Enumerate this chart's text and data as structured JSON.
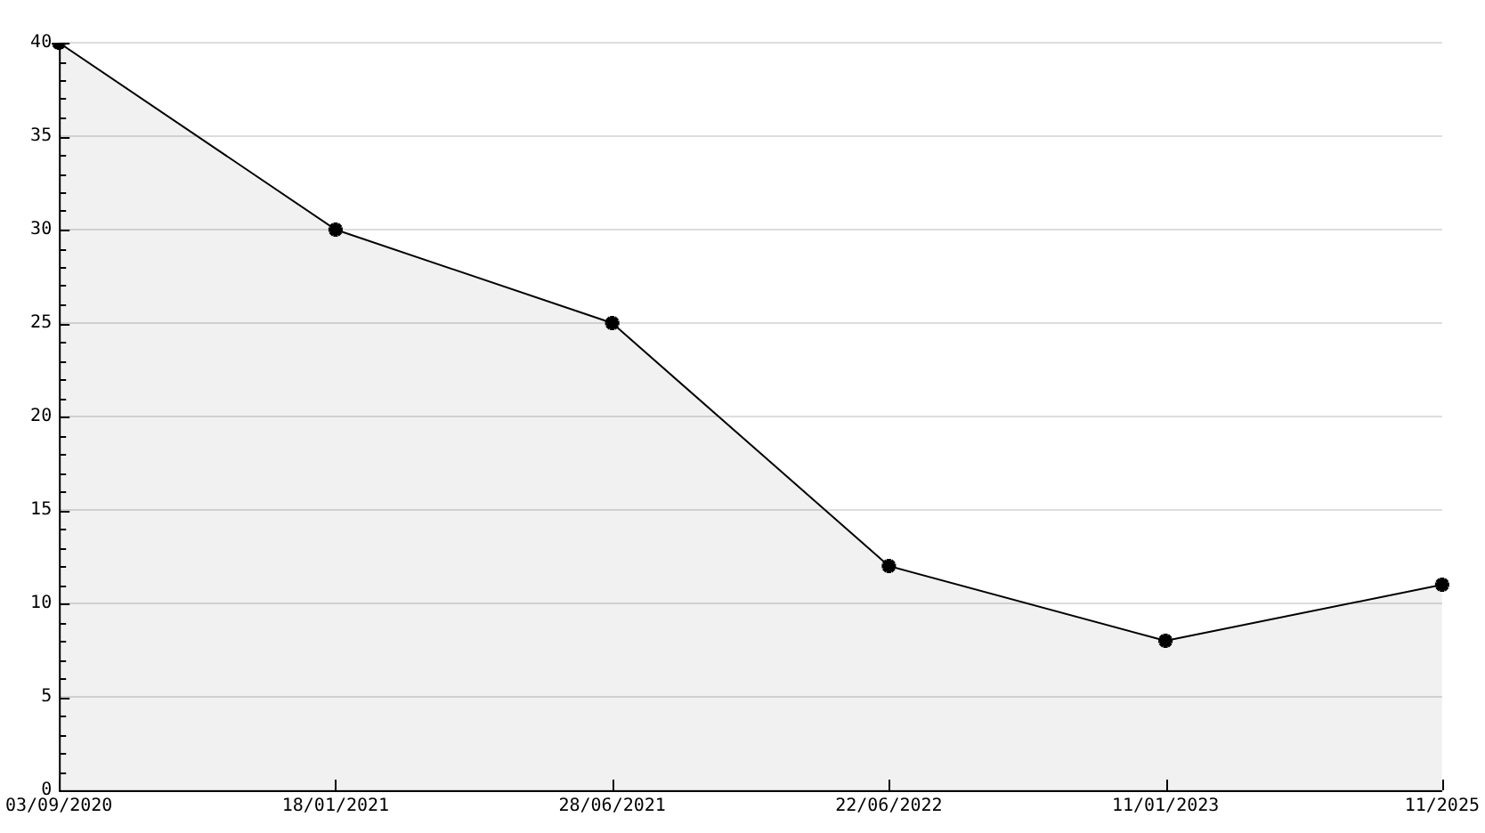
{
  "chart_data": {
    "type": "area",
    "categories": [
      "03/09/2020",
      "18/01/2021",
      "28/06/2021",
      "22/06/2022",
      "11/01/2023",
      "11/2025"
    ],
    "series": [
      {
        "color": "#000000",
        "values": [
          40,
          30,
          25,
          12,
          8,
          11
        ]
      }
    ],
    "ylim": [
      0,
      40
    ],
    "yticks": [
      0,
      5,
      10,
      15,
      20,
      25,
      30,
      35,
      40
    ],
    "grid": "y",
    "legend": false,
    "marker": "cross",
    "line_style": "solid"
  }
}
